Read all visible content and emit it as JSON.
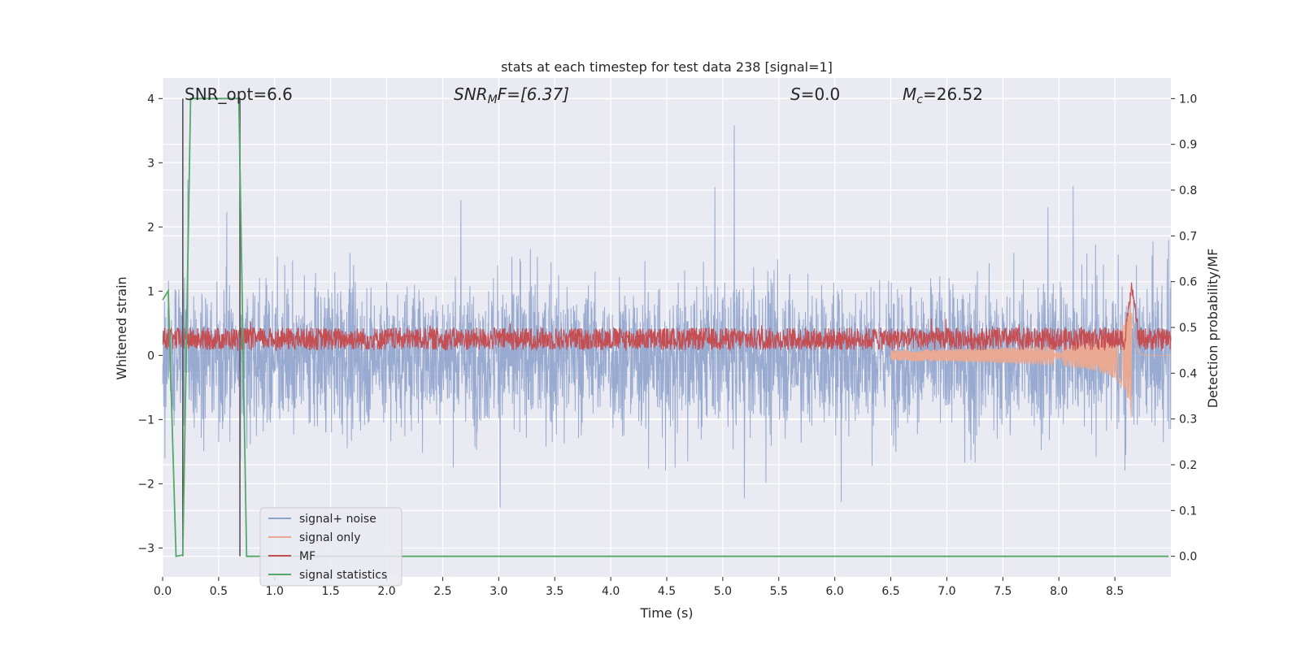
{
  "chart_data": {
    "type": "line",
    "title": "stats at each timestep for test data 238 [signal=1]",
    "xlabel": "Time (s)",
    "ylabel_left": "Whitened strain",
    "ylabel_right": "Detection probability/MF",
    "xlim": [
      0.0,
      9.0
    ],
    "ylim_left": [
      -3.45,
      4.32
    ],
    "ylim_right": [
      -0.045,
      1.045
    ],
    "x_ticks": [
      "0.0",
      "0.5",
      "1.0",
      "1.5",
      "2.0",
      "2.5",
      "3.0",
      "3.5",
      "4.0",
      "4.5",
      "5.0",
      "5.5",
      "6.0",
      "6.5",
      "7.0",
      "7.5",
      "8.0",
      "8.5"
    ],
    "y_ticks_left": [
      "−3",
      "−2",
      "−1",
      "0",
      "1",
      "2",
      "3",
      "4"
    ],
    "y_ticks_right": [
      "0.0",
      "0.1",
      "0.2",
      "0.3",
      "0.4",
      "0.5",
      "0.6",
      "0.7",
      "0.8",
      "0.9",
      "1.0"
    ],
    "grid": true,
    "legend_position": "lower-left",
    "annotations": {
      "snr_opt": "SNR_opt=6.6",
      "snr_mf_label": "SNR",
      "snr_mf_sub": "M",
      "snr_mf_tail": "F=[6.37]",
      "s_label": "S",
      "s_value": "=0.0",
      "mc_label": "M",
      "mc_sub": "c",
      "mc_value": "=26.52"
    },
    "series": [
      {
        "name": "signal+ noise",
        "axis": "left",
        "color": "#8fa3cc",
        "description_range": [
          -2.5,
          4.0
        ],
        "typical_band": [
          -1.0,
          1.0
        ]
      },
      {
        "name": "signal only",
        "axis": "left",
        "color": "#e9a992",
        "chirp": {
          "start_x": 6.5,
          "peak_x": 8.65,
          "peak_amp": 1.1
        }
      },
      {
        "name": "MF",
        "axis": "right",
        "color": "#c44e52",
        "typical_band": [
          0.45,
          0.5
        ],
        "peak": {
          "x": 8.65,
          "y": 0.59
        }
      },
      {
        "name": "signal statistics",
        "axis": "right",
        "color": "#55a868",
        "x": [
          0.0,
          0.05,
          0.12,
          0.18,
          0.25,
          0.68,
          0.75,
          8.98
        ],
        "y": [
          0.56,
          0.58,
          0.0,
          0.003,
          1.0,
          1.0,
          0.0,
          0.0
        ]
      }
    ],
    "vertical_lines": [
      {
        "x": 0.18,
        "y_right": [
          0.0,
          1.0
        ],
        "color": "#555555"
      },
      {
        "x": 0.69,
        "y_right": [
          0.0,
          1.0
        ],
        "color": "#555555"
      }
    ]
  }
}
